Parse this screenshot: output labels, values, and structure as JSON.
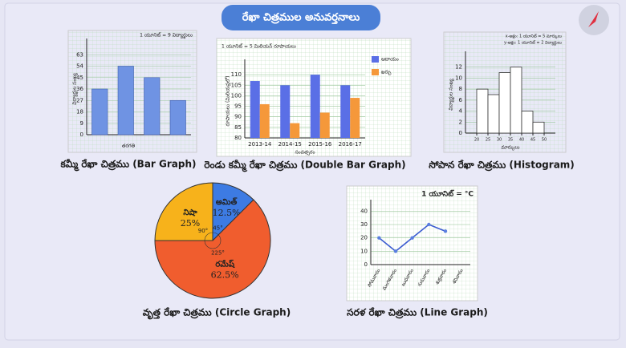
{
  "slide_title": "రేఖా చిత్రముల అనువర్తనాలు",
  "chart_data": [
    {
      "type": "bar",
      "caption": "కమ్మీ రేఖా చిత్రము (Bar Graph)",
      "note": "1 యూనిట్ = 9 విద్యార్థులు",
      "y_label": "విద్యార్థుల సంఖ్య",
      "x_label": "తరగతి",
      "categories": [
        null,
        null,
        null,
        null
      ],
      "values": [
        36,
        54,
        45,
        27
      ],
      "color": "#6f93e3",
      "ylim": [
        0,
        72
      ],
      "yticks": [
        0,
        9,
        18,
        27,
        36,
        45,
        54,
        63
      ],
      "grid": true
    },
    {
      "type": "grouped_bar",
      "caption": "రెండు కమ్మీ రేఖా చిత్రము (Double Bar Graph)",
      "note": "1 యూనిట్ = 5 మిలియన్ రూపాయలు",
      "y_label": "రూపాయలు (మిలియన్లలో)",
      "x_label": "సంవత్సరం",
      "categories": [
        "2013-14",
        "2014-15",
        "2015-16",
        "2016-17"
      ],
      "series": [
        {
          "name": "ఆదాయం",
          "color": "#5a6fe6",
          "values": [
            107,
            105,
            110,
            105
          ]
        },
        {
          "name": "ఖర్చు",
          "color": "#f5983a",
          "values": [
            96,
            87,
            92,
            99
          ]
        }
      ],
      "ylim": [
        80,
        115
      ],
      "yticks": [
        80,
        85,
        90,
        95,
        100,
        105,
        110
      ],
      "grid": true,
      "legend": "top-right"
    },
    {
      "type": "histogram",
      "caption": "సోపాన రేఖా చిత్రము (Histogram)",
      "notes": [
        "x-అక్షం: 1 యూనిట్ = 5 మార్కులు",
        "y-అక్షం: 1 యూనిట్ = 2 విద్యార్థులు"
      ],
      "y_label": "విద్యార్థుల సంఖ్య",
      "x_label": "మార్కులు",
      "bins": [
        20,
        25,
        30,
        35,
        40,
        45,
        50
      ],
      "values": [
        8,
        7,
        11,
        12,
        4,
        2
      ],
      "color": "#ffffff",
      "xlim": [
        15,
        55
      ],
      "xticks": [
        20,
        25,
        30,
        35,
        40,
        45,
        50
      ],
      "ylim": [
        0,
        14
      ],
      "yticks": [
        0,
        2,
        4,
        6,
        8,
        10,
        12
      ],
      "grid": true
    },
    {
      "type": "pie",
      "caption": "వృత్త రేఖా చిత్రము (Circle Graph)",
      "categories": [
        "అమిత్",
        "రమేష్",
        "నిషా"
      ],
      "values": [
        12.5,
        62.5,
        25
      ],
      "value_labels": [
        "12.5%",
        "62.5%",
        "25%"
      ],
      "angle_labels": [
        "45°",
        "225°",
        "90°"
      ],
      "colors": [
        "#3d7be3",
        "#f05d2e",
        "#f7b21b"
      ]
    },
    {
      "type": "line",
      "caption": "సరళ రేఖా చిత్రము (Line Graph)",
      "note": "1 యూనిట్ = °C",
      "categories": [
        "సోమవారం",
        "మంగళవారం",
        "బుధవారం",
        "గురువారం",
        "శుక్రవారం",
        "శనివారం"
      ],
      "values": [
        20,
        10,
        20,
        30,
        25,
        null
      ],
      "color": "#3a5bd0",
      "ylim": [
        0,
        45
      ],
      "yticks": [
        0,
        10,
        20,
        30,
        40
      ],
      "grid": true
    }
  ]
}
